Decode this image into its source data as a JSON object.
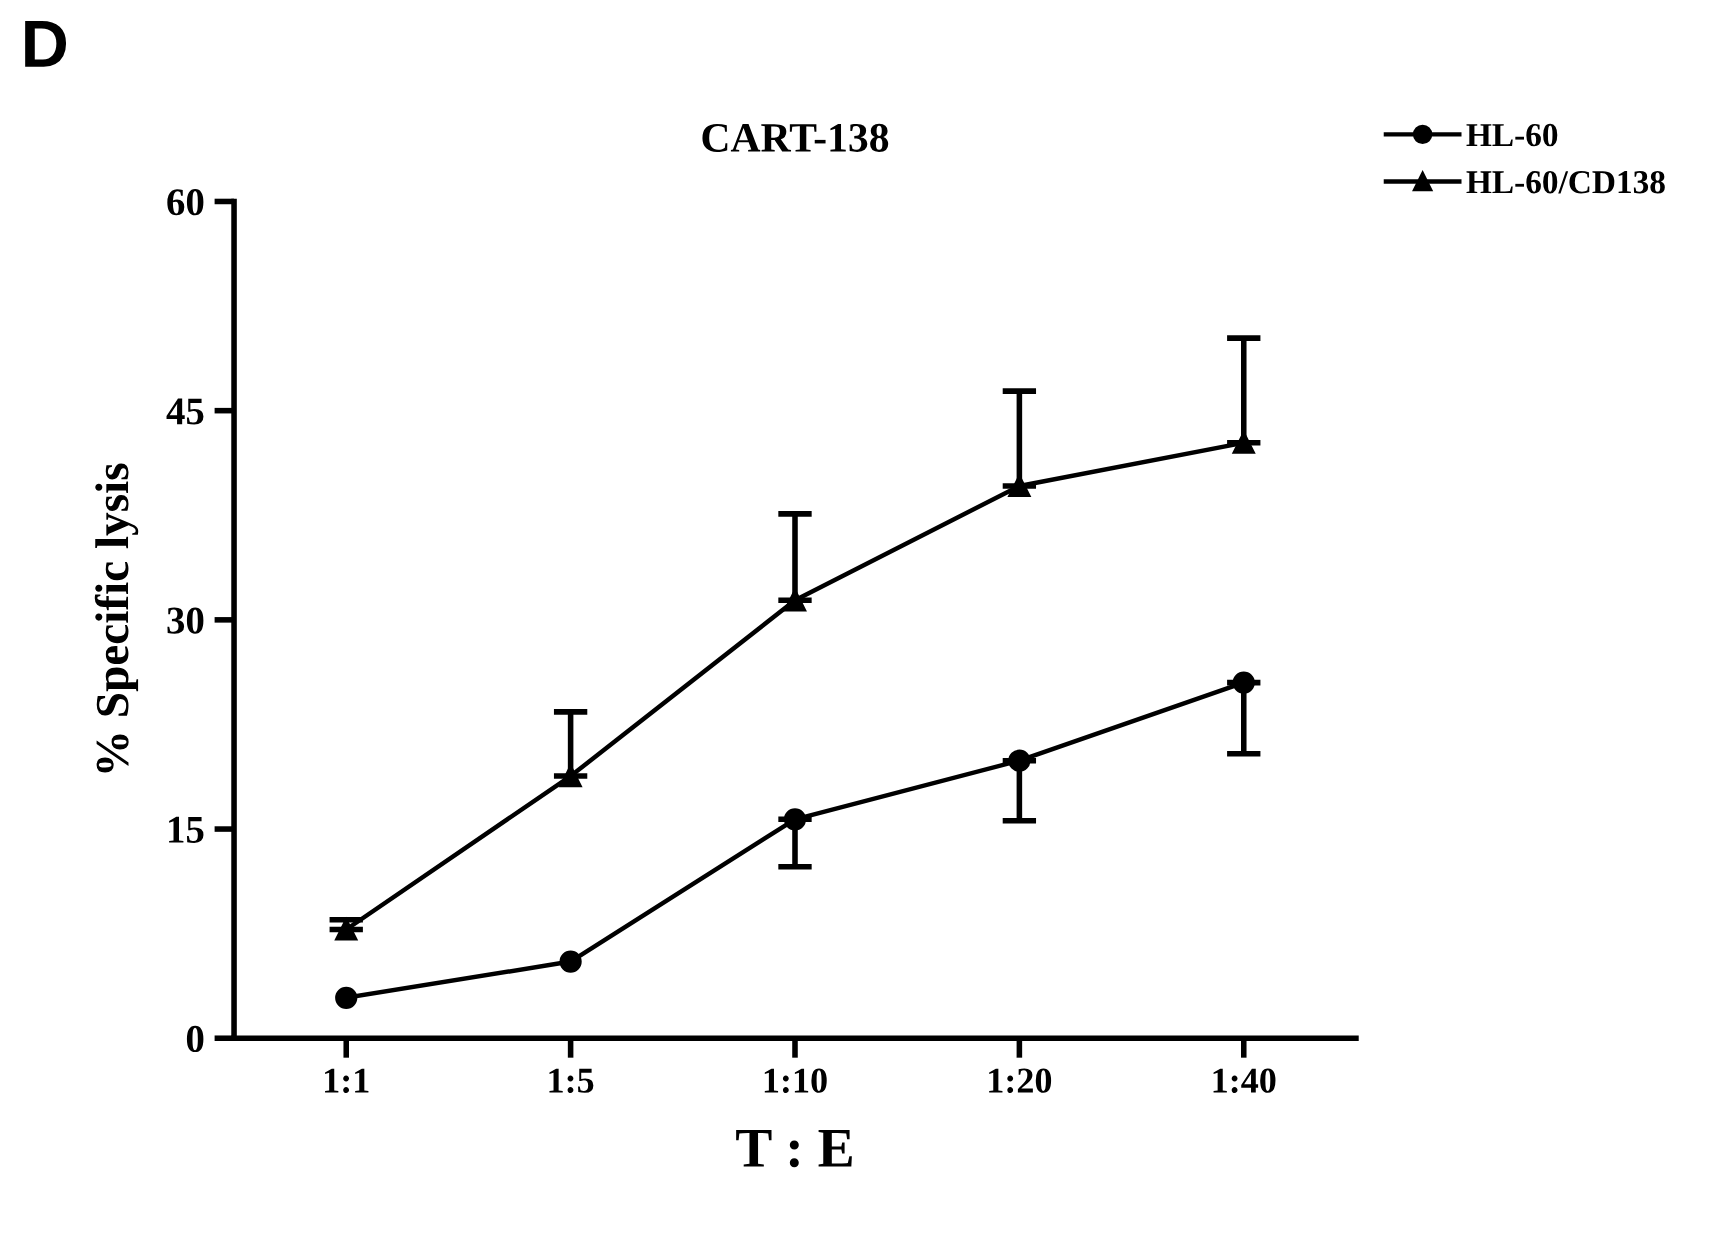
{
  "chart_data": {
    "type": "line",
    "title": "CART-138",
    "xlabel": "T : E",
    "ylabel": "% Specific lysis",
    "annotations": [
      "D"
    ],
    "categories": [
      "1:1",
      "1:5",
      "1:10",
      "1:20",
      "1:40"
    ],
    "series": [
      {
        "name": "HL-60",
        "color": "#000000",
        "marker": "circle",
        "values": [
          2.9,
          5.5,
          15.7,
          19.9,
          25.5
        ],
        "errors": [
          null,
          null,
          [
            12.3,
            15.7
          ],
          [
            15.6,
            19.9
          ],
          [
            20.4,
            25.5
          ]
        ]
      },
      {
        "name": "HL-60/CD138",
        "color": "#000000",
        "marker": "triangle",
        "values": [
          7.8,
          18.8,
          31.4,
          39.6,
          42.7
        ],
        "errors": [
          [
            7.8,
            8.5
          ],
          [
            18.8,
            23.4
          ],
          [
            31.4,
            37.6
          ],
          [
            39.6,
            46.4
          ],
          [
            42.7,
            50.2
          ]
        ]
      }
    ],
    "ylim": [
      0,
      60
    ],
    "yticks": [
      0,
      15,
      30,
      45,
      60
    ],
    "grid": false,
    "legend": "top right",
    "line_style": "solid"
  }
}
